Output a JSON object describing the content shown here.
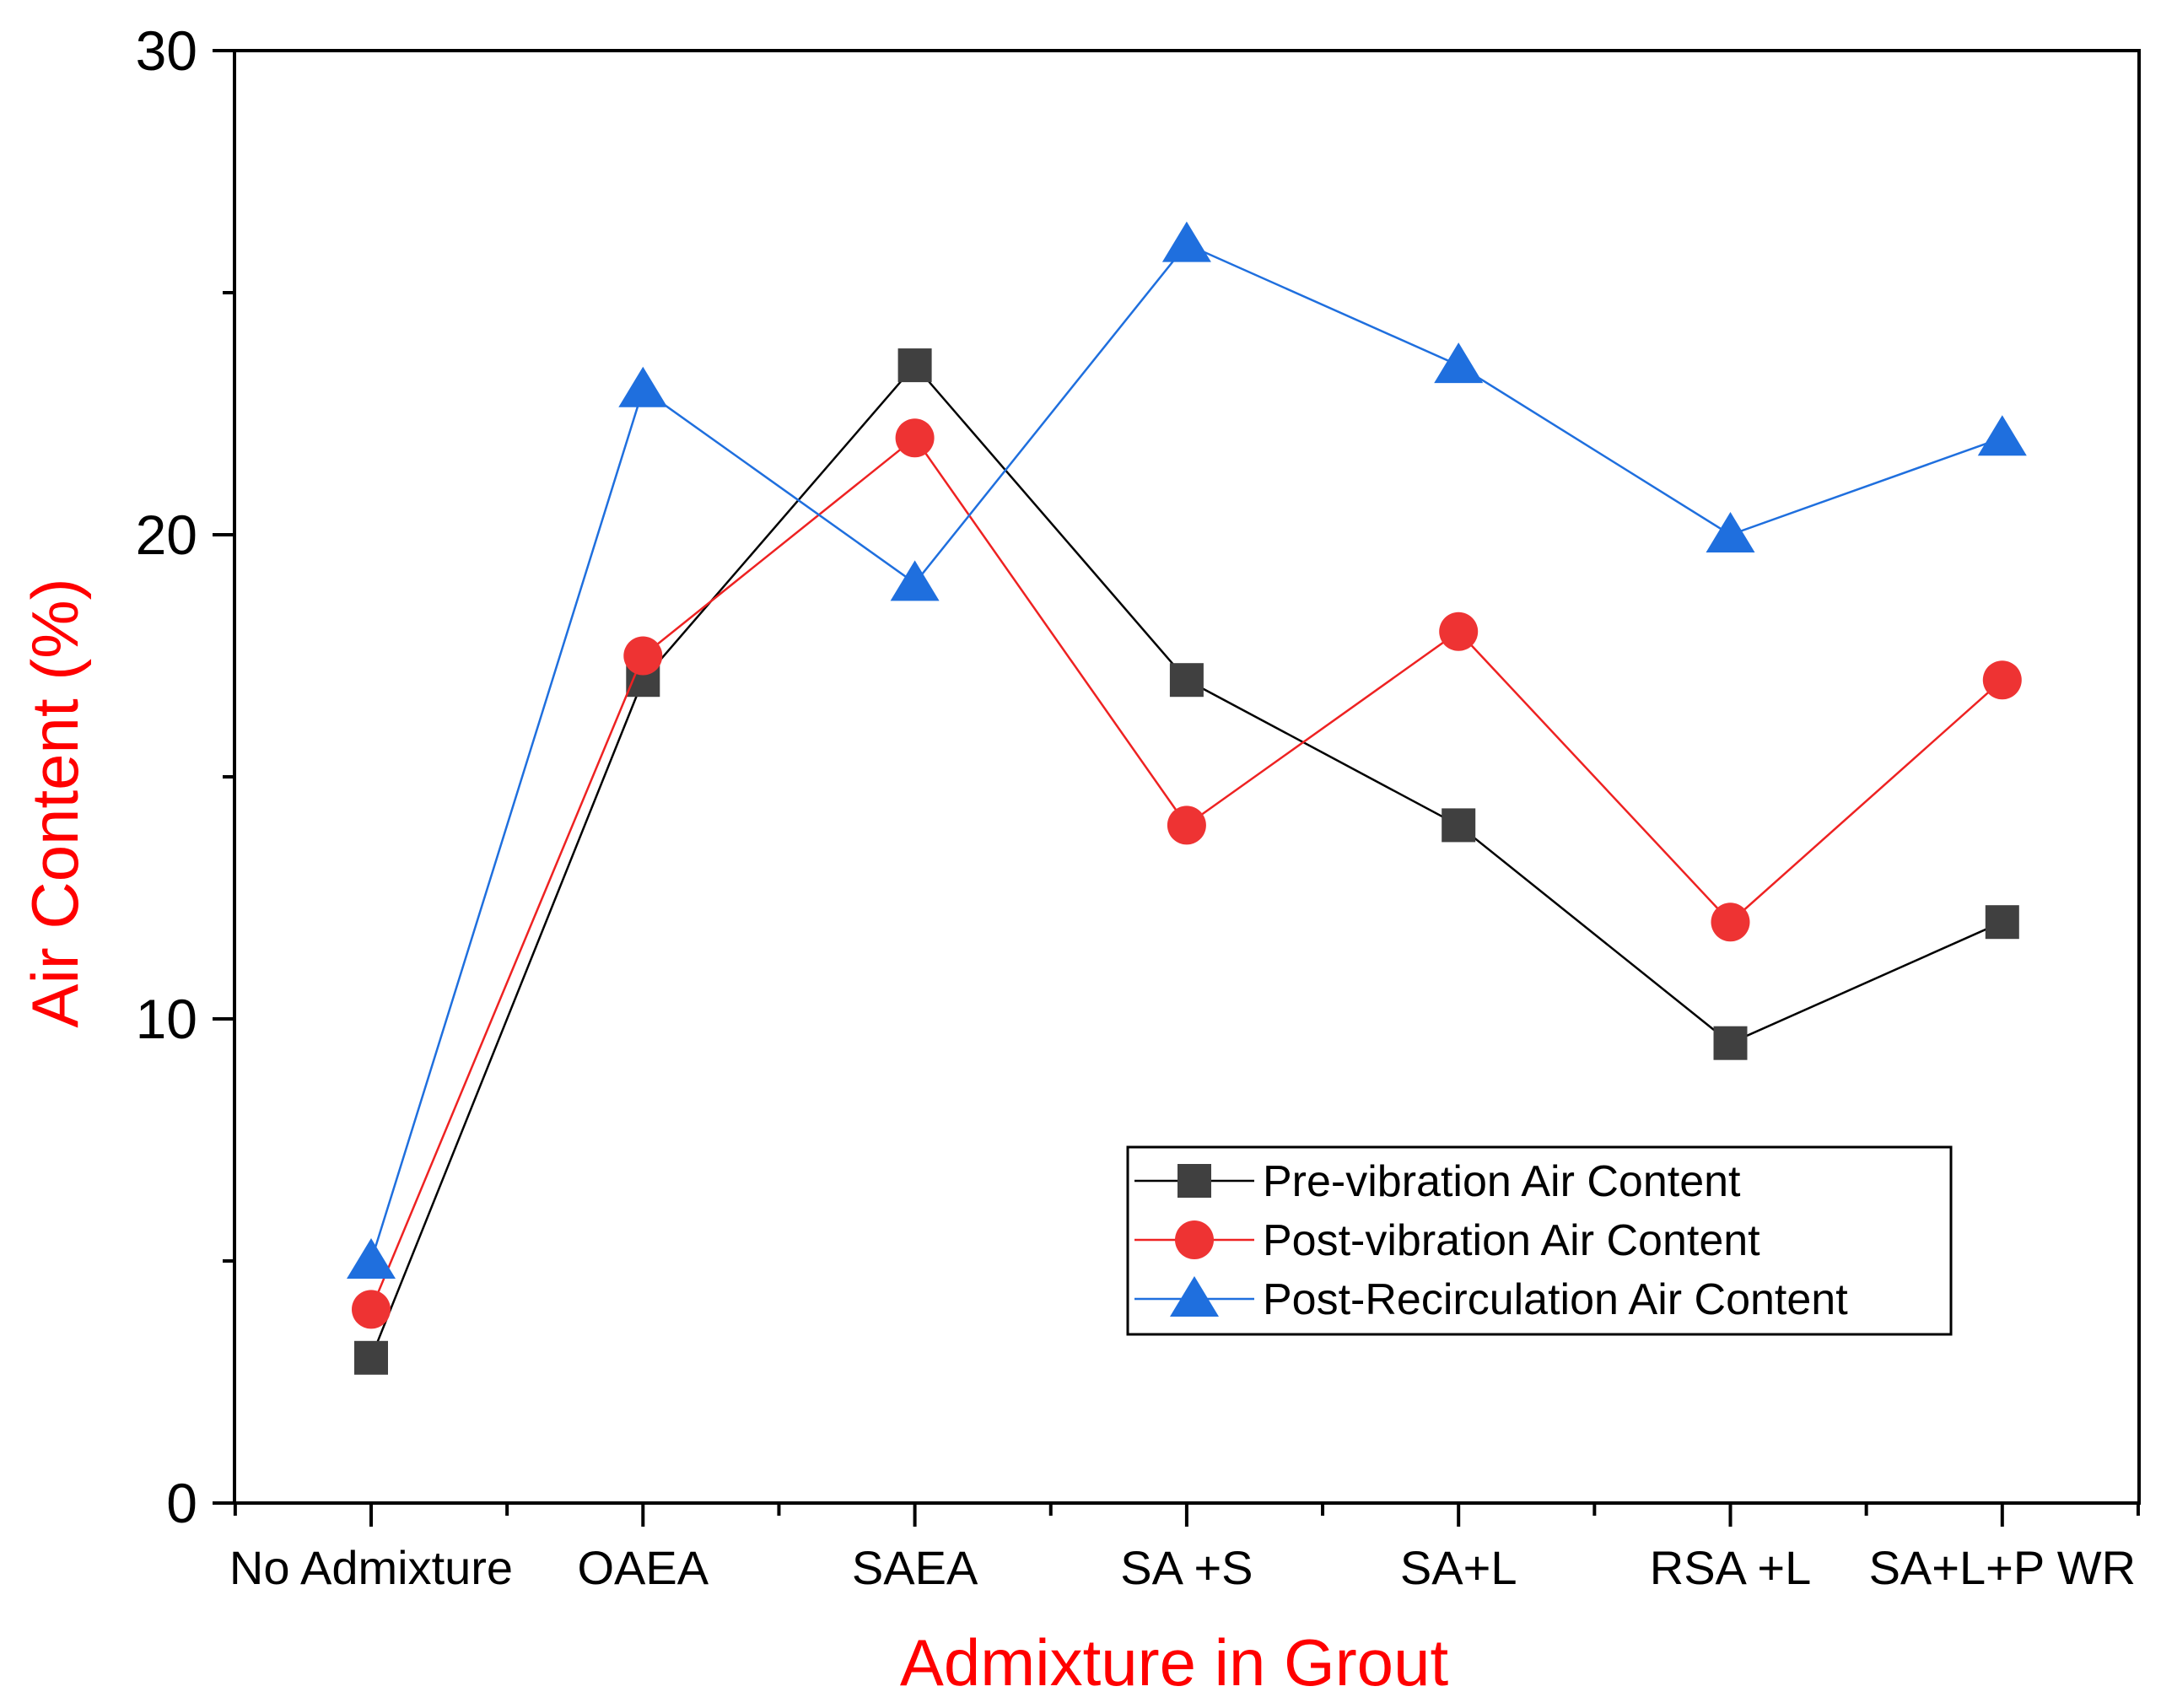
{
  "chart_data": {
    "type": "line",
    "xlabel": "Admixture in Grout",
    "ylabel": "Air Content (%)",
    "ylim": [
      0,
      30
    ],
    "yticks": [
      "0",
      "10",
      "20",
      "30"
    ],
    "categories": [
      "No Admixture",
      "OAEA",
      "SAEA",
      "SA +S",
      "SA+L",
      "RSA +L",
      "SA+L+P WR"
    ],
    "grid": false,
    "legend_position": "lower-right",
    "label_color": "#ff0000",
    "series": [
      {
        "name": "Pre-vibration Air Content",
        "marker": "square",
        "color": "#404040",
        "line_color": "#000000",
        "values": [
          3,
          17,
          23.5,
          17,
          14,
          9.5,
          12
        ]
      },
      {
        "name": "Post-vibration Air Content",
        "marker": "circle",
        "color": "#ee3333",
        "line_color": "#ee2222",
        "values": [
          4,
          17.5,
          22,
          14,
          18,
          12,
          17
        ]
      },
      {
        "name": "Post-Recirculation Air Content",
        "marker": "triangle",
        "color": "#1f6fde",
        "line_color": "#1f6fde",
        "values": [
          5,
          23,
          19,
          26,
          23.5,
          20,
          22
        ]
      }
    ]
  }
}
